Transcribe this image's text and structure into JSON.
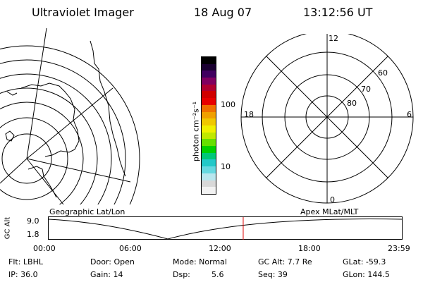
{
  "header": {
    "instrument": "Ultraviolet Imager",
    "date": "18 Aug 07",
    "time": "13:12:56 UT"
  },
  "colorbar": {
    "unit_label": "photon cm⁻²s⁻¹",
    "tick_100": "100",
    "tick_10": "10",
    "colors": [
      "#f2f2f2",
      "#d8d8d8",
      "#b8e6ee",
      "#66d8e0",
      "#22c8c8",
      "#00c878",
      "#00d000",
      "#66e000",
      "#c0e800",
      "#f0f000",
      "#f0c800",
      "#f0a000",
      "#f07000",
      "#e80000",
      "#d00000",
      "#b00030",
      "#800060",
      "#400060",
      "#1a0030",
      "#000000"
    ]
  },
  "left_map": {
    "label": "Geographic Lat/Lon"
  },
  "right_map": {
    "label": "Apex MLat/MLT",
    "mlt_labels": {
      "top": "12",
      "bottom": "0",
      "left": "18",
      "right": "6"
    },
    "lat_labels": {
      "lat60": "60",
      "lat70": "70",
      "lat80": "80"
    }
  },
  "altitude_plot": {
    "ylabel": "GC Alt",
    "ymax": "9.0",
    "ymin": "1.8",
    "x_ticks": [
      "00:00",
      "06:00",
      "12:00",
      "18:00",
      "23:59"
    ],
    "marker_time_hours": 13.22,
    "marker_color": "#e00000"
  },
  "status": {
    "filter": "Flt: LBHL",
    "door": "Door: Open",
    "mode": "Mode: Normal",
    "gc_alt": "GC Alt: 7.7 Re",
    "glat": "GLat: -59.3",
    "ip": "IP: 36.0",
    "gain": "Gain: 14",
    "dsp_label": "Dsp:",
    "dsp_value": "5.6",
    "seq": "Seq: 39",
    "glon": "GLon: 144.5"
  }
}
